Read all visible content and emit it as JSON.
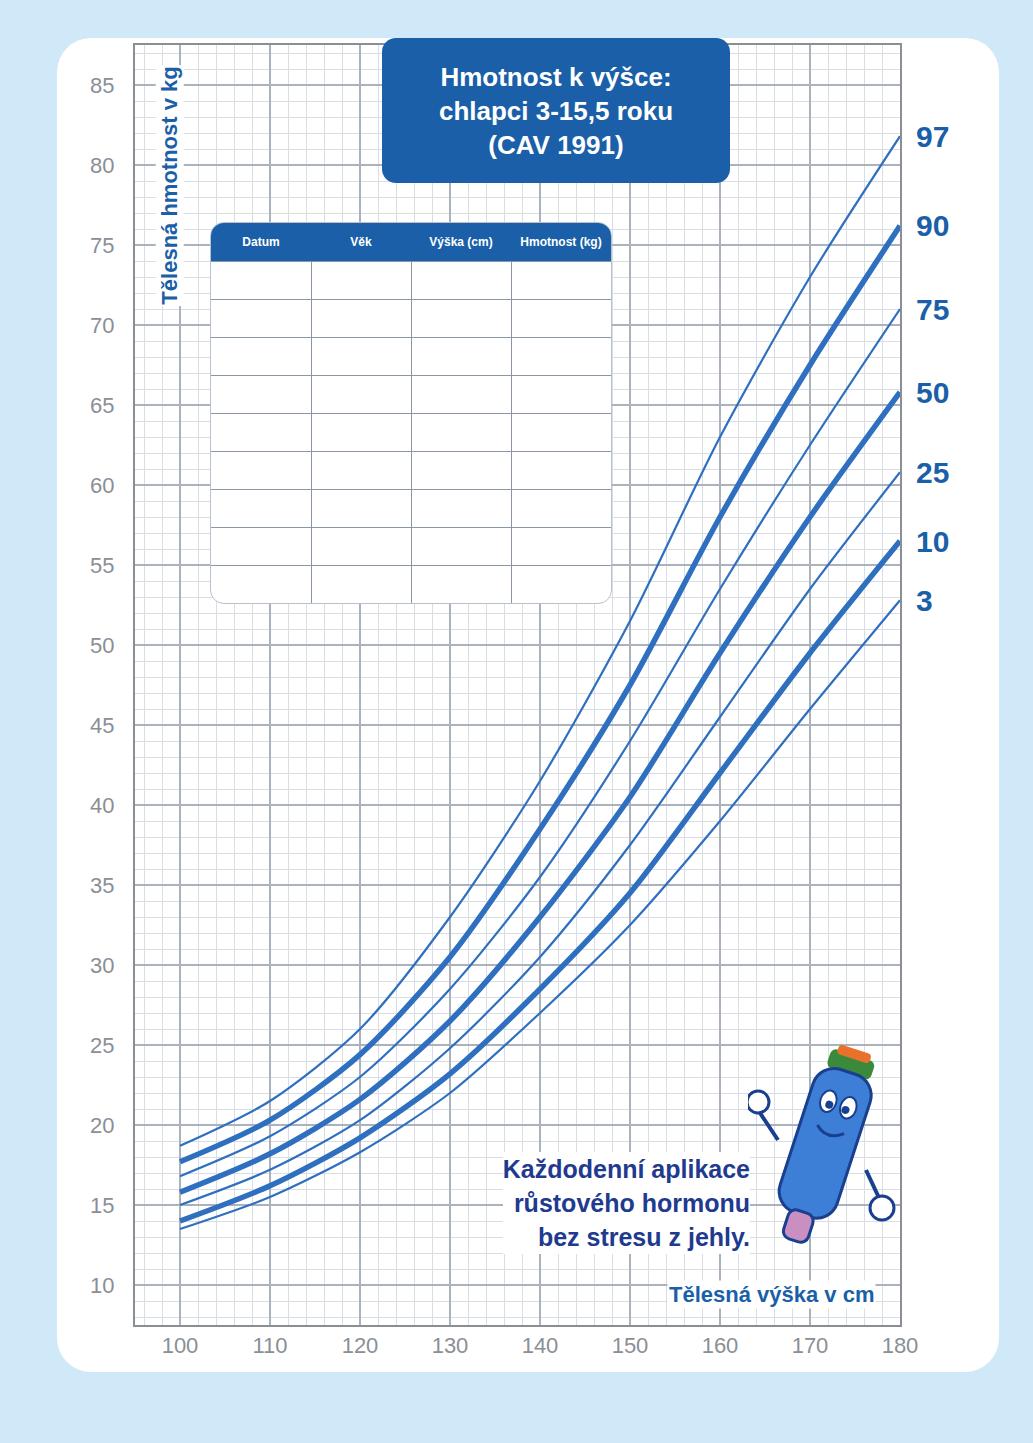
{
  "chart_data": {
    "type": "line",
    "title": [
      "Hmotnost k výšce:",
      "chlapci 3-15,5 roku",
      "(CAV 1991)"
    ],
    "x_label": "Tělesná výška v cm",
    "y_label": "Tělesná hmotnost v kg",
    "x": [
      100,
      110,
      120,
      130,
      140,
      150,
      160,
      170,
      180
    ],
    "series": [
      {
        "name": "97",
        "color": "#2f6fbf",
        "line_style": "solid",
        "values": [
          18.7,
          21.5,
          26,
          33,
          41.5,
          51.5,
          63,
          73,
          81.8
        ]
      },
      {
        "name": "90",
        "color": "#2f6fbf",
        "line_style": "bold",
        "values": [
          17.7,
          20.3,
          24.4,
          30.5,
          38.5,
          47.5,
          58,
          67.5,
          76.2
        ]
      },
      {
        "name": "75",
        "color": "#2f6fbf",
        "line_style": "solid",
        "values": [
          16.8,
          19.3,
          23,
          28.5,
          35.5,
          44,
          53.5,
          62.5,
          71
        ]
      },
      {
        "name": "50",
        "color": "#2f6fbf",
        "line_style": "bold",
        "values": [
          15.8,
          18.2,
          21.6,
          26.5,
          33,
          40.5,
          49.5,
          58,
          65.8
        ]
      },
      {
        "name": "25",
        "color": "#2f6fbf",
        "line_style": "solid",
        "values": [
          15,
          17.2,
          20.3,
          24.8,
          30.5,
          37.5,
          45.5,
          53.5,
          60.8
        ]
      },
      {
        "name": "10",
        "color": "#2f6fbf",
        "line_style": "bold",
        "values": [
          14,
          16.2,
          19.2,
          23.2,
          28.5,
          34.5,
          42,
          49.5,
          56.5
        ]
      },
      {
        "name": "3",
        "color": "#2f6fbf",
        "line_style": "solid",
        "values": [
          13.5,
          15.5,
          18.3,
          22,
          27,
          32.5,
          39,
          46,
          52.8
        ]
      }
    ],
    "xlim": [
      95,
      180
    ],
    "xticks": [
      100,
      110,
      120,
      130,
      140,
      150,
      160,
      170,
      180
    ],
    "ylim": [
      7.5,
      87.5
    ],
    "yticks": [
      10,
      15,
      20,
      25,
      30,
      35,
      40,
      45,
      50,
      55,
      60,
      65,
      70,
      75,
      80,
      85
    ],
    "grid": true
  },
  "table": {
    "columns": [
      "Datum",
      "Věk",
      "Výška (cm)",
      "Hmotnost (kg)"
    ],
    "empty_rows": 9
  },
  "note": [
    "Každodenní aplikace",
    "růstového hormonu",
    "bez stresu z jehly."
  ]
}
